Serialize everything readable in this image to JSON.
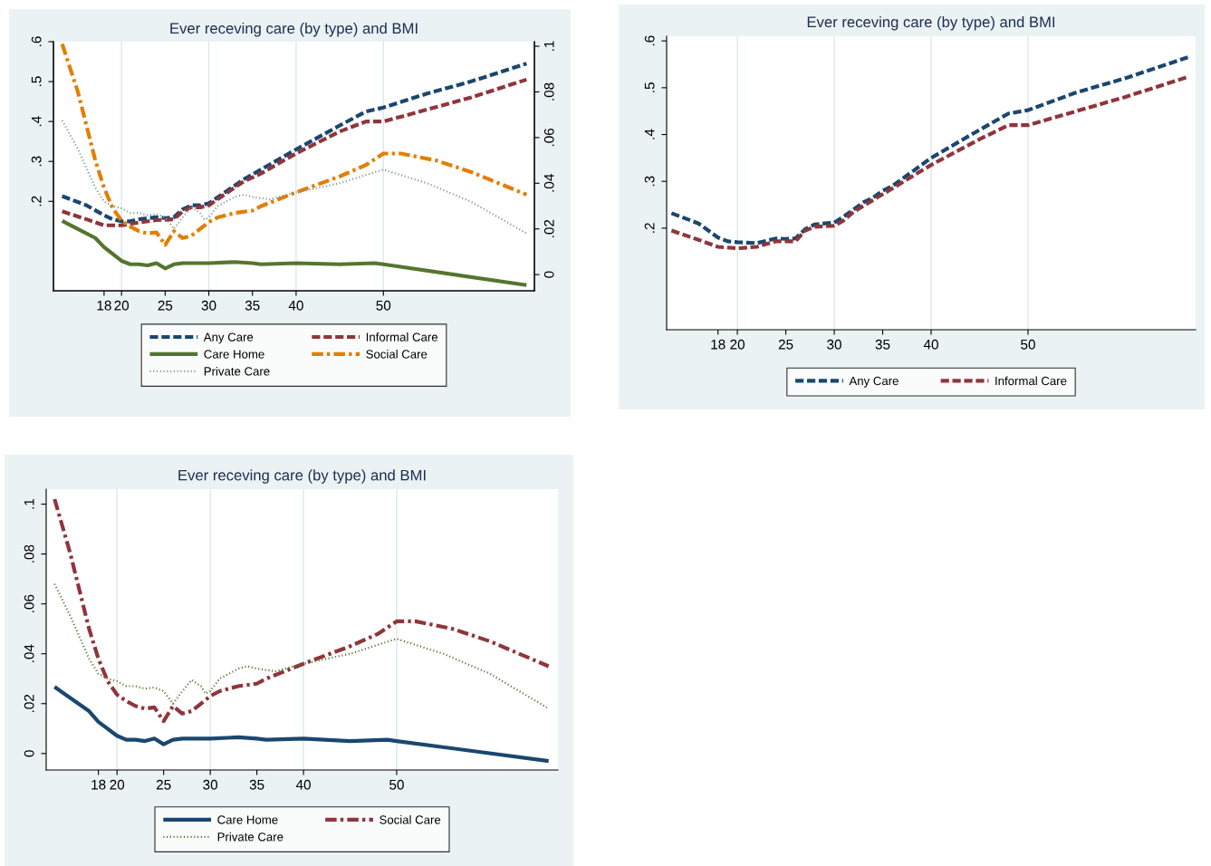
{
  "chart_data": [
    {
      "type": "line",
      "title": "Ever receving care (by type) and BMI",
      "legend": "bottom",
      "grid": "x",
      "xlim": [
        12.2,
        67.3
      ],
      "xticks": [
        18,
        20,
        25,
        30,
        35,
        40,
        50
      ],
      "ylim": [
        -0.024,
        0.6
      ],
      "yticks": [
        {
          "value": 0.2,
          "label": ".2"
        },
        {
          "value": 0.3,
          "label": ".3"
        },
        {
          "value": 0.4,
          "label": ".4"
        },
        {
          "value": 0.5,
          "label": ".5"
        },
        {
          "value": 0.6,
          "label": ".6"
        }
      ],
      "y2lim": [
        -0.0071,
        0.102
      ],
      "y2ticks": [
        0,
        {
          "value": 0.02,
          "label": ".02"
        },
        {
          "value": 0.04,
          "label": ".04"
        },
        {
          "value": 0.06,
          "label": ".06"
        },
        {
          "value": 0.08,
          "label": ".08"
        },
        {
          "value": 0.1,
          "label": ".1"
        }
      ],
      "series": [
        {
          "name": "Any Care",
          "color": "#1a476f",
          "line_style": "dashed",
          "x": [
            13.2,
            16,
            18,
            19,
            20,
            21,
            22,
            23,
            24,
            25,
            26,
            27,
            28,
            29,
            30,
            32,
            34,
            36,
            40,
            45,
            48,
            50,
            55,
            60,
            66.4
          ],
          "values": [
            0.213,
            0.19,
            0.165,
            0.155,
            0.15,
            0.15,
            0.155,
            0.158,
            0.16,
            0.158,
            0.16,
            0.18,
            0.19,
            0.19,
            0.195,
            0.225,
            0.255,
            0.28,
            0.33,
            0.39,
            0.425,
            0.435,
            0.47,
            0.5,
            0.545
          ]
        },
        {
          "name": "Informal Care",
          "color": "#90353b",
          "line_style": "dashed",
          "x": [
            13.2,
            16,
            18,
            20,
            22,
            24,
            26,
            27,
            28,
            29,
            30,
            32,
            34,
            36,
            40,
            45,
            48,
            50,
            55,
            60,
            66.4
          ],
          "values": [
            0.175,
            0.155,
            0.14,
            0.14,
            0.147,
            0.153,
            0.155,
            0.175,
            0.185,
            0.185,
            0.19,
            0.22,
            0.25,
            0.27,
            0.32,
            0.375,
            0.4,
            0.4,
            0.43,
            0.46,
            0.505
          ]
        },
        {
          "name": "Care Home",
          "color": "#55752f",
          "line_style": "solid",
          "axis": "y2",
          "x": [
            13.2,
            17,
            18,
            20,
            21,
            22,
            23,
            24,
            25,
            26,
            27,
            30,
            33,
            35,
            36,
            40,
            45,
            49,
            50,
            66.4
          ],
          "values": [
            0.0235,
            0.016,
            0.012,
            0.006,
            0.0045,
            0.0045,
            0.004,
            0.005,
            0.0027,
            0.0045,
            0.005,
            0.005,
            0.0055,
            0.005,
            0.0045,
            0.005,
            0.0045,
            0.005,
            0.0045,
            -0.0046
          ]
        },
        {
          "name": "Social Care",
          "color": "#e37e00",
          "line_style": "dashdot",
          "axis": "y2",
          "x": [
            13.2,
            15,
            16,
            17,
            18,
            19,
            20,
            21,
            22,
            23,
            24,
            25,
            26,
            27,
            28,
            29,
            30,
            31,
            32,
            33,
            35,
            36,
            40,
            45,
            48,
            50,
            52,
            56,
            60,
            66.4
          ],
          "values": [
            0.101,
            0.08,
            0.065,
            0.05,
            0.038,
            0.029,
            0.0236,
            0.021,
            0.019,
            0.018,
            0.0185,
            0.013,
            0.019,
            0.016,
            0.017,
            0.02,
            0.023,
            0.025,
            0.026,
            0.027,
            0.028,
            0.03,
            0.036,
            0.043,
            0.048,
            0.053,
            0.053,
            0.05,
            0.045,
            0.035
          ]
        },
        {
          "name": "Private Care",
          "color": "#7f9a90",
          "line_style": "dotted",
          "axis": "y2",
          "x": [
            13.2,
            15,
            17,
            18,
            19,
            20,
            21,
            22,
            23,
            24,
            25,
            26,
            27,
            28,
            29,
            29.5,
            30,
            31,
            32,
            33,
            34,
            35,
            37,
            40,
            45,
            50,
            55,
            60,
            66.4
          ],
          "values": [
            0.0675,
            0.055,
            0.038,
            0.032,
            0.03,
            0.029,
            0.027,
            0.027,
            0.026,
            0.0265,
            0.025,
            0.02,
            0.025,
            0.0295,
            0.027,
            0.024,
            0.025,
            0.03,
            0.032,
            0.034,
            0.035,
            0.034,
            0.033,
            0.036,
            0.04,
            0.046,
            0.04,
            0.032,
            0.018
          ]
        }
      ]
    },
    {
      "type": "line",
      "title": "Ever receving care (by type) and BMI",
      "legend": "bottom",
      "grid": "x",
      "xlim": [
        12.7,
        67.3
      ],
      "xticks": [
        18,
        20,
        25,
        30,
        35,
        40,
        50
      ],
      "ylim": [
        -0.017,
        0.61
      ],
      "yticks": [
        {
          "value": 0.2,
          "label": ".2"
        },
        {
          "value": 0.3,
          "label": ".3"
        },
        {
          "value": 0.4,
          "label": ".4"
        },
        {
          "value": 0.5,
          "label": ".5"
        },
        {
          "value": 0.6,
          "label": ".6"
        }
      ],
      "series": [
        {
          "name": "Any Care",
          "color": "#1a476f",
          "line_style": "dashed",
          "x": [
            13.2,
            16,
            18,
            19,
            20,
            22,
            24,
            25,
            26,
            27,
            28,
            29,
            30,
            31,
            32,
            33,
            34,
            35,
            36,
            40,
            45,
            48,
            50,
            55,
            60,
            66.5
          ],
          "values": [
            0.232,
            0.21,
            0.18,
            0.172,
            0.17,
            0.168,
            0.178,
            0.177,
            0.178,
            0.198,
            0.208,
            0.21,
            0.212,
            0.225,
            0.24,
            0.255,
            0.265,
            0.28,
            0.29,
            0.35,
            0.41,
            0.445,
            0.452,
            0.49,
            0.52,
            0.565
          ]
        },
        {
          "name": "Informal Care",
          "color": "#90353b",
          "line_style": "dashed",
          "x": [
            13.2,
            16,
            18,
            20,
            22,
            24,
            25,
            26,
            27,
            28,
            30,
            31,
            32,
            34,
            36,
            40,
            45,
            48,
            50,
            55,
            60,
            66.5
          ],
          "values": [
            0.195,
            0.175,
            0.16,
            0.157,
            0.16,
            0.172,
            0.172,
            0.172,
            0.195,
            0.203,
            0.205,
            0.217,
            0.235,
            0.26,
            0.285,
            0.335,
            0.39,
            0.42,
            0.42,
            0.45,
            0.48,
            0.523
          ]
        }
      ]
    },
    {
      "type": "line",
      "title": "Ever receving care (by type) and BMI",
      "legend": "bottom",
      "grid": "x",
      "xlim": [
        12.4,
        67.3
      ],
      "xticks": [
        18,
        20,
        25,
        30,
        35,
        40,
        50
      ],
      "ylim": [
        -0.0066,
        0.106
      ],
      "yticks": [
        0,
        {
          "value": 0.02,
          "label": ".02"
        },
        {
          "value": 0.04,
          "label": ".04"
        },
        {
          "value": 0.06,
          "label": ".06"
        },
        {
          "value": 0.08,
          "label": ".08"
        },
        {
          "value": 0.1,
          "label": ".1"
        }
      ],
      "series": [
        {
          "name": "Care Home",
          "color": "#1a476f",
          "line_style": "solid",
          "x": [
            13.3,
            17,
            18,
            20,
            21,
            22,
            23,
            24,
            25,
            26,
            27,
            30,
            33,
            35,
            36,
            40,
            45,
            49,
            50,
            66.3
          ],
          "values": [
            0.0267,
            0.017,
            0.0127,
            0.0071,
            0.0055,
            0.0055,
            0.005,
            0.006,
            0.0037,
            0.0055,
            0.006,
            0.006,
            0.0065,
            0.006,
            0.0055,
            0.006,
            0.005,
            0.0055,
            0.005,
            -0.003
          ]
        },
        {
          "name": "Social Care",
          "color": "#90353b",
          "line_style": "dashdot",
          "x": [
            13.3,
            15,
            16,
            17,
            18,
            19,
            20,
            21,
            22,
            23,
            24,
            25,
            26,
            27,
            28,
            29,
            30,
            31,
            32,
            33,
            35,
            36,
            40,
            45,
            48,
            50,
            52,
            56,
            60,
            66.3
          ],
          "values": [
            0.102,
            0.08,
            0.065,
            0.05,
            0.038,
            0.029,
            0.0236,
            0.021,
            0.019,
            0.018,
            0.0185,
            0.013,
            0.019,
            0.016,
            0.017,
            0.02,
            0.023,
            0.025,
            0.026,
            0.027,
            0.028,
            0.03,
            0.036,
            0.043,
            0.048,
            0.053,
            0.053,
            0.05,
            0.045,
            0.035
          ]
        },
        {
          "name": "Private Care",
          "color": "#55752f",
          "line_style": "dotted",
          "x": [
            13.3,
            15,
            17,
            18,
            19,
            20,
            21,
            22,
            23,
            24,
            25,
            26,
            27,
            28,
            29,
            29.5,
            30,
            31,
            32,
            33,
            34,
            35,
            37,
            40,
            45,
            50,
            55,
            60,
            66.3
          ],
          "values": [
            0.068,
            0.055,
            0.038,
            0.032,
            0.03,
            0.029,
            0.027,
            0.027,
            0.026,
            0.0265,
            0.025,
            0.02,
            0.025,
            0.0295,
            0.027,
            0.024,
            0.025,
            0.03,
            0.032,
            0.034,
            0.035,
            0.034,
            0.033,
            0.036,
            0.04,
            0.046,
            0.04,
            0.032,
            0.018
          ]
        }
      ]
    }
  ]
}
